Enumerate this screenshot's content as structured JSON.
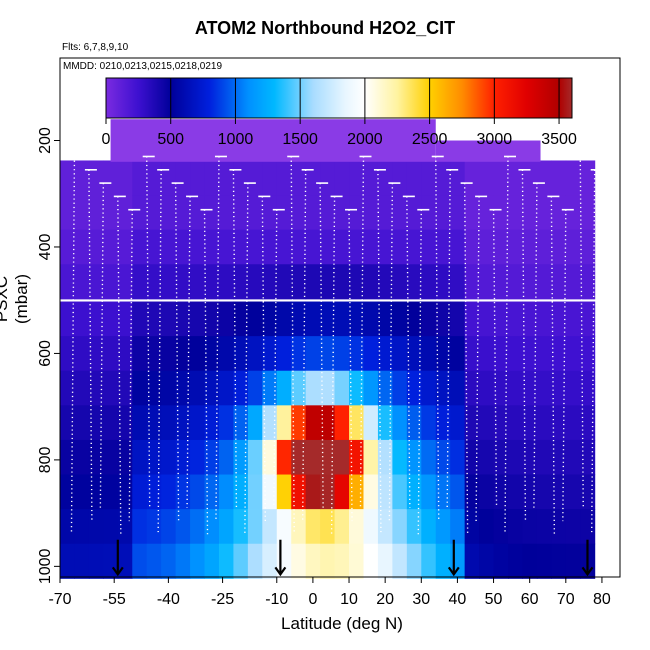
{
  "chart_data": {
    "type": "heatmap",
    "title": "ATOM2 Northbound H2O2_CIT",
    "flights_label": "Flts: 6,7,8,9,10",
    "dates_label": "MMDD: 0210,0213,0215,0218,0219",
    "xlabel": "Latitude (deg N)",
    "ylabel": "PSXC (mbar)",
    "xlim": [
      -70,
      85
    ],
    "ylim": [
      1020,
      45
    ],
    "y_reversed": true,
    "x_ticks": [
      -70,
      -55,
      -40,
      -25,
      -10,
      0,
      10,
      20,
      30,
      40,
      50,
      60,
      70,
      80
    ],
    "x_tick_labels": [
      "-70",
      "-55",
      "-40",
      "-25",
      "-10",
      "0",
      "10",
      "20",
      "30",
      "40",
      "50",
      "60",
      "70",
      "80"
    ],
    "y_ticks": [
      200,
      400,
      600,
      800,
      1000
    ],
    "y_tick_labels": [
      "200",
      "400",
      "600",
      "800",
      "1000"
    ],
    "colorbar": {
      "min": 0,
      "max": 3600,
      "ticks": [
        0,
        500,
        1000,
        1500,
        2000,
        2500,
        3000,
        3500
      ],
      "tick_labels": [
        "0",
        "500",
        "1000",
        "1500",
        "2000",
        "2500",
        "3000",
        "3500"
      ],
      "stops": [
        {
          "value": 0,
          "color": "#7a2be0"
        },
        {
          "value": 250,
          "color": "#3d10d0"
        },
        {
          "value": 500,
          "color": "#00009a"
        },
        {
          "value": 800,
          "color": "#0020dd"
        },
        {
          "value": 1100,
          "color": "#0090ff"
        },
        {
          "value": 1300,
          "color": "#00b8ff"
        },
        {
          "value": 1600,
          "color": "#a8dcff"
        },
        {
          "value": 1850,
          "color": "#e8f6ff"
        },
        {
          "value": 2000,
          "color": "#ffffff"
        },
        {
          "value": 2250,
          "color": "#fff3a0"
        },
        {
          "value": 2500,
          "color": "#ffd000"
        },
        {
          "value": 2750,
          "color": "#ff8c00"
        },
        {
          "value": 3000,
          "color": "#ff2000"
        },
        {
          "value": 3250,
          "color": "#e00000"
        },
        {
          "value": 3500,
          "color": "#b00000"
        },
        {
          "value": 3600,
          "color": "#a52a2a"
        }
      ]
    },
    "grid_latitudes": [
      -68,
      -64,
      -60,
      -56,
      -52,
      -48,
      -44,
      -40,
      -36,
      -32,
      -28,
      -24,
      -20,
      -16,
      -12,
      -8,
      -4,
      0,
      4,
      8,
      12,
      16,
      20,
      24,
      28,
      32,
      36,
      40,
      44,
      48,
      52,
      56,
      60,
      64,
      68,
      72,
      76
    ],
    "grid_pressures": [
      270,
      335,
      400,
      465,
      535,
      600,
      665,
      730,
      795,
      860,
      925,
      990
    ],
    "anomaly_center": {
      "lat": 2,
      "pressure": 790,
      "peak_value": 3300
    },
    "profile_sample_latitudes": [
      -66,
      -62,
      -58,
      -54,
      -50,
      -46,
      -42,
      -38,
      -34,
      -30,
      -26,
      -22,
      -18,
      -14,
      -10,
      -6,
      -2,
      2,
      6,
      10,
      14,
      18,
      22,
      26,
      30,
      34,
      38,
      42,
      46,
      50,
      54,
      58,
      62,
      66,
      70,
      74,
      78
    ],
    "surface_arrow_latitudes": [
      -54,
      -9,
      39,
      76
    ]
  }
}
